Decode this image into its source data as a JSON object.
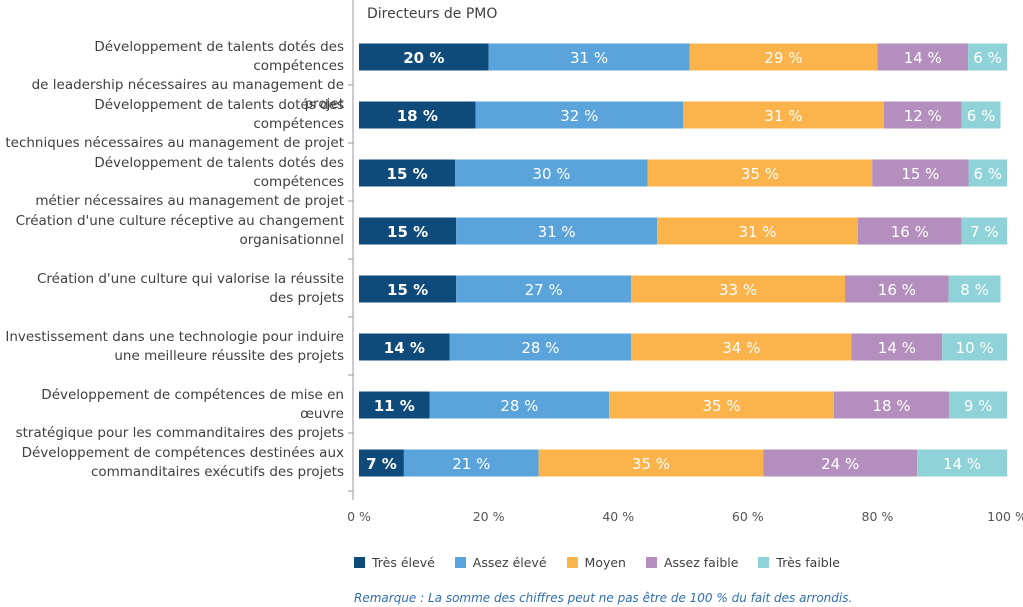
{
  "chart_data": {
    "type": "bar",
    "orientation": "horizontal",
    "stacked": true,
    "title": "Directeurs de PMO",
    "categories": [
      [
        "Développement de talents dotés des compétences",
        "de leadership nécessaires au management de projet"
      ],
      [
        "Développement de talents dotés des compétences",
        "techniques nécessaires au management de projet"
      ],
      [
        "Développement de talents dotés des compétences",
        "métier nécessaires au management de projet"
      ],
      [
        "Création d'une culture réceptive au changement",
        "organisationnel"
      ],
      [
        "Création d'une culture qui valorise la réussite",
        "des projets"
      ],
      [
        "Investissement dans une technologie pour induire",
        "une meilleure réussite des projets"
      ],
      [
        "Développement de compétences de mise en œuvre",
        "stratégique pour les commanditaires des projets"
      ],
      [
        "Développement de compétences destinées aux",
        "commanditaires exécutifs des projets"
      ]
    ],
    "series": [
      {
        "name": "Très élevé",
        "color": "#0f4b7a",
        "values": [
          20,
          18,
          15,
          15,
          15,
          14,
          11,
          7
        ]
      },
      {
        "name": "Assez élevé",
        "color": "#5aa3db",
        "values": [
          31,
          32,
          30,
          31,
          27,
          28,
          28,
          21
        ]
      },
      {
        "name": "Moyen",
        "color": "#fbb34c",
        "values": [
          29,
          31,
          35,
          31,
          33,
          34,
          35,
          35
        ]
      },
      {
        "name": "Assez faible",
        "color": "#b48fbd",
        "values": [
          14,
          12,
          15,
          16,
          16,
          14,
          18,
          24
        ]
      },
      {
        "name": "Très faible",
        "color": "#8fd3d8",
        "values": [
          6,
          6,
          6,
          7,
          8,
          10,
          9,
          14
        ]
      }
    ],
    "value_suffix": " %",
    "xlim": [
      0,
      100
    ],
    "xticks": [
      "0 %",
      "20 %",
      "40 %",
      "60 %",
      "80 %",
      "100 %"
    ],
    "grid": false,
    "legend": "bottom"
  },
  "note": "Remarque : La somme des chiffres peut ne pas être de 100 % du fait des arrondis."
}
